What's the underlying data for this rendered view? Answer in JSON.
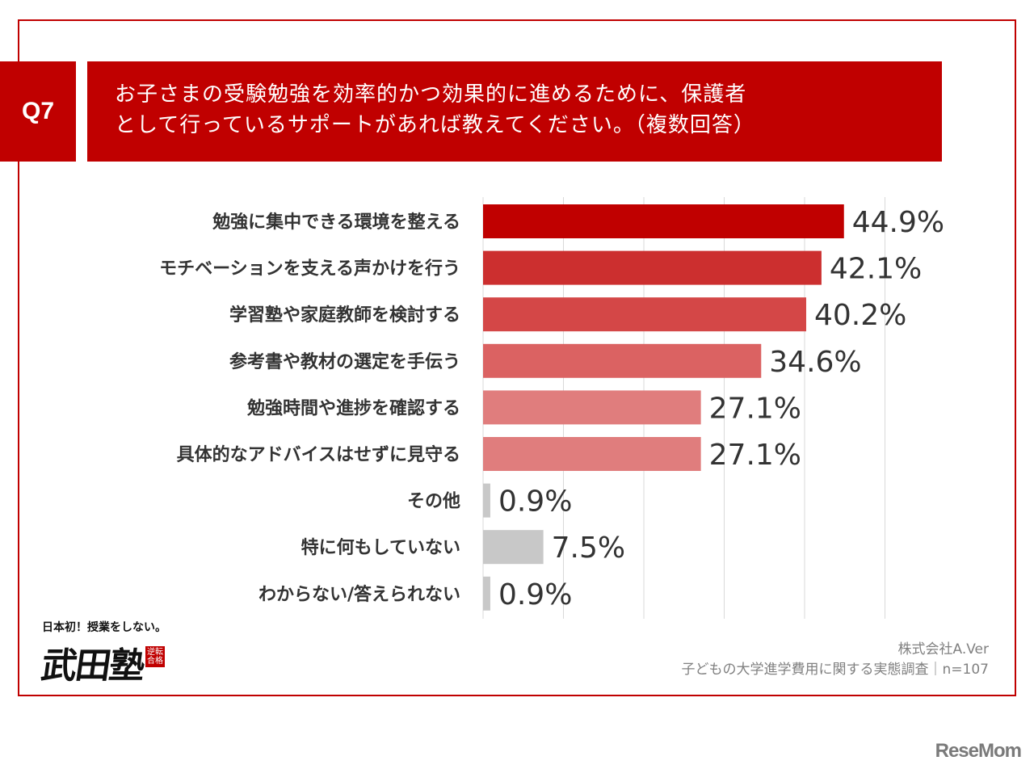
{
  "question": {
    "badge": "Q7",
    "line1": "お子さまの受験勉強を効率的かつ効果的に進めるために、保護者",
    "line2": "として行っているサポートがあれば教えてください。（複数回答）"
  },
  "chart_data": {
    "type": "bar",
    "orientation": "horizontal",
    "categories": [
      "勉強に集中できる環境を整える",
      "モチベーションを支える声かけを行う",
      "学習塾や家庭教師を検討する",
      "参考書や教材の選定を手伝う",
      "勉強時間や進捗を確認する",
      "具体的なアドバイスはせずに見守る",
      "その他",
      "特に何もしていない",
      "わからない/答えられない"
    ],
    "values": [
      44.9,
      42.1,
      40.2,
      34.6,
      27.1,
      27.1,
      0.9,
      7.5,
      0.9
    ],
    "value_labels": [
      "44.9%",
      "42.1%",
      "40.2%",
      "34.6%",
      "27.1%",
      "27.1%",
      "0.9%",
      "7.5%",
      "0.9%"
    ],
    "bar_colors": [
      "#c00000",
      "#cc2f2f",
      "#d44747",
      "#db6262",
      "#e07d7d",
      "#e07d7d",
      "#c8c8c8",
      "#c8c8c8",
      "#c8c8c8"
    ],
    "xlim": [
      0,
      50
    ],
    "grid": true,
    "unit": "%"
  },
  "source": {
    "company": "株式会社A.Ver",
    "survey": "子どもの大学進学費用に関する実態調査｜n=107"
  },
  "logo": {
    "tagline": "日本初！授業をしない。",
    "name": "武田塾",
    "seal": "逆転合格"
  },
  "watermark": "ReseMom",
  "colors": {
    "accent": "#c00000",
    "frame": "#c00000",
    "other_bars": "#c8c8c8"
  }
}
